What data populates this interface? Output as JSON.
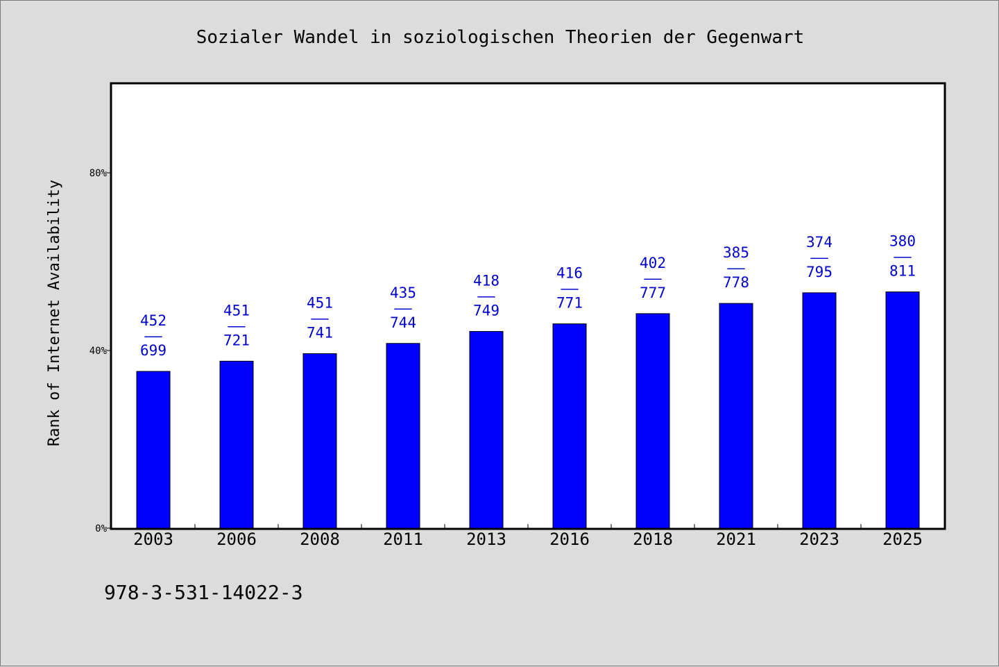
{
  "chart_data": {
    "type": "bar",
    "title": "Sozialer Wandel in soziologischen Theorien der Gegenwart",
    "xlabel": "",
    "ylabel": "Rank of Internet Availability",
    "ylim": [
      0,
      100
    ],
    "yticks": [
      {
        "value": 0,
        "label": "0%"
      },
      {
        "value": 40,
        "label": "40%"
      },
      {
        "value": 80,
        "label": "80%"
      }
    ],
    "categories": [
      "2003",
      "2006",
      "2008",
      "2011",
      "2013",
      "2016",
      "2018",
      "2021",
      "2023",
      "2025"
    ],
    "values": [
      35.3,
      37.6,
      39.3,
      41.6,
      44.3,
      46.0,
      48.3,
      50.6,
      53.0,
      53.2
    ],
    "data_labels": [
      {
        "top": "452",
        "sep": "——",
        "bottom": "699"
      },
      {
        "top": "451",
        "sep": "——",
        "bottom": "721"
      },
      {
        "top": "451",
        "sep": "——",
        "bottom": "741"
      },
      {
        "top": "435",
        "sep": "——",
        "bottom": "744"
      },
      {
        "top": "418",
        "sep": "——",
        "bottom": "749"
      },
      {
        "top": "416",
        "sep": "——",
        "bottom": "771"
      },
      {
        "top": "402",
        "sep": "——",
        "bottom": "777"
      },
      {
        "top": "385",
        "sep": "——",
        "bottom": "778"
      },
      {
        "top": "374",
        "sep": "——",
        "bottom": "795"
      },
      {
        "top": "380",
        "sep": "——",
        "bottom": "811"
      }
    ],
    "bar_color": "#0000ff",
    "label_color": "#0000cc",
    "grid": false,
    "legend": "none"
  },
  "footer": {
    "isbn": "978-3-531-14022-3"
  }
}
